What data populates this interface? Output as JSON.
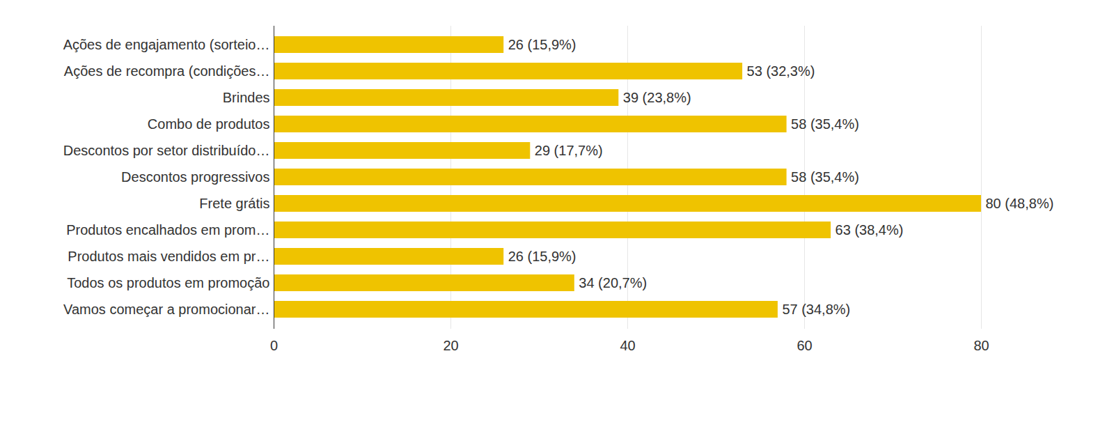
{
  "chart_data": {
    "type": "bar",
    "orientation": "horizontal",
    "categories": [
      "Ações de engajamento (sorteio…",
      "Ações de recompra (condições…",
      "Brindes",
      "Combo de produtos",
      "Descontos por setor distribuído…",
      "Descontos progressivos",
      "Frete grátis",
      "Produtos encalhados em prom…",
      "Produtos mais vendidos em pr…",
      "Todos os produtos em promoção",
      "Vamos começar a promocionar…"
    ],
    "values": [
      26,
      53,
      39,
      58,
      29,
      58,
      80,
      63,
      26,
      34,
      57
    ],
    "value_labels": [
      "26 (15,9%)",
      "53 (32,3%)",
      "39 (23,8%)",
      "58 (35,4%)",
      "29 (17,7%)",
      "58 (35,4%)",
      "80 (48,8%)",
      "63 (38,4%)",
      "26 (15,9%)",
      "34 (20,7%)",
      "57 (34,8%)"
    ],
    "color": "#efc300",
    "xlim": [
      0,
      80
    ],
    "xticks": [
      0,
      20,
      40,
      60,
      80
    ],
    "grid": true,
    "data_labels": true
  }
}
